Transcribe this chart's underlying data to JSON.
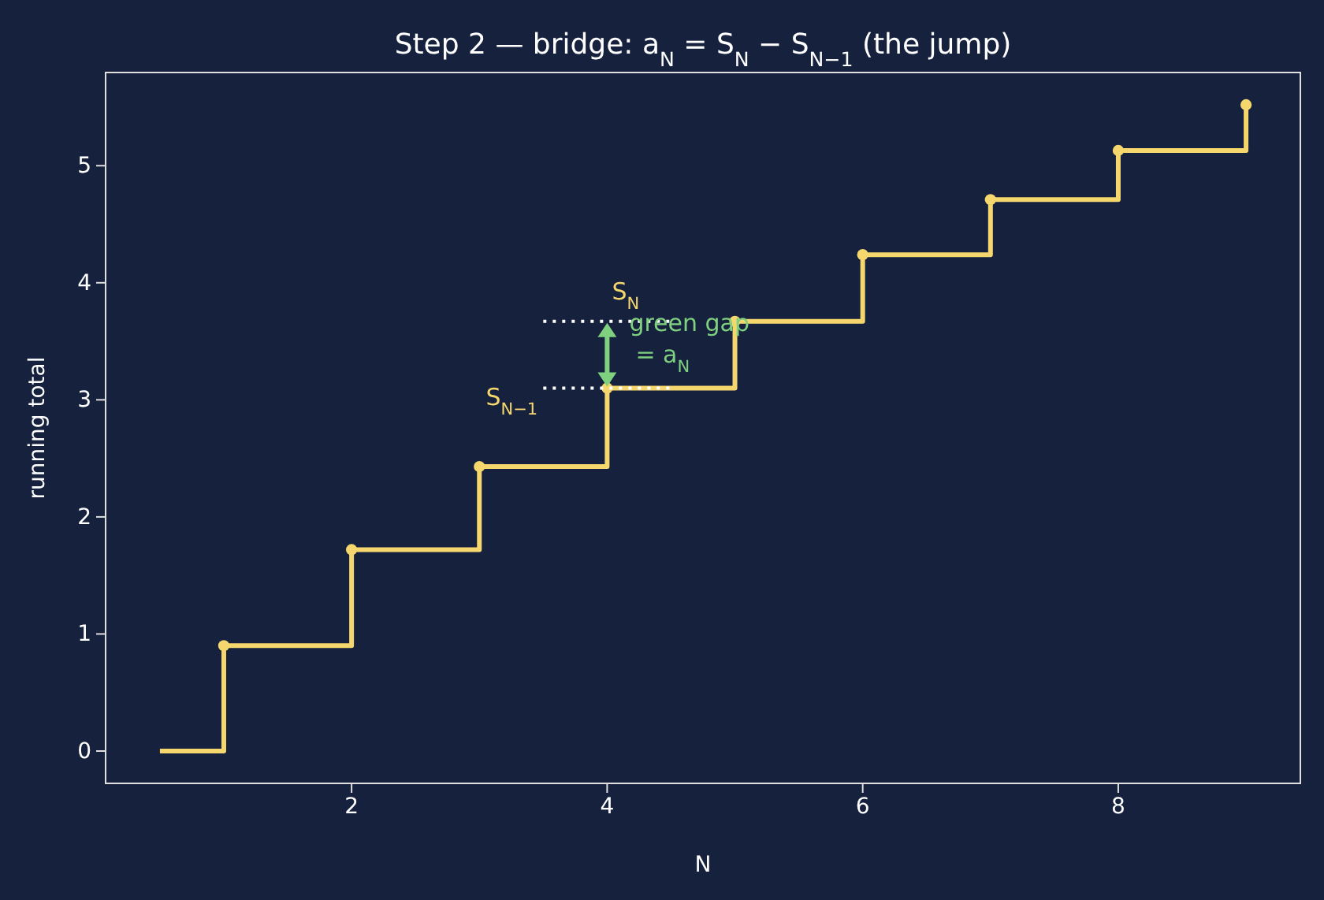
{
  "chart_data": {
    "type": "step",
    "title": "Step 2 — bridge: a$_{N}$ = S$_{N}$ − S$_{N−1}$ (the jump)",
    "xlabel": "N",
    "ylabel": "running total",
    "xlim": [
      0.075,
      9.425
    ],
    "ylim": [
      -0.276,
      5.796
    ],
    "xticks": [
      2,
      4,
      6,
      8
    ],
    "yticks": [
      0,
      1,
      2,
      3,
      4,
      5
    ],
    "grid": false,
    "series": [
      {
        "color": "#f5d76e",
        "x": [
          0.5,
          1,
          2,
          3,
          4,
          5,
          6,
          7,
          8,
          9
        ],
        "values": [
          0,
          0.9,
          1.72,
          2.43,
          3.1,
          3.67,
          4.24,
          4.71,
          5.13,
          5.52
        ]
      },
      {
        "type": "scatter",
        "color": "#f5d76e",
        "marker": "circle",
        "x": [
          1,
          2,
          3,
          4,
          5,
          6,
          7,
          8,
          9
        ],
        "values": [
          0.9,
          1.72,
          2.43,
          3.1,
          3.67,
          4.24,
          4.71,
          5.13,
          5.52
        ]
      },
      {
        "type": "line",
        "color": "#ffffff",
        "line_style": "dotted",
        "x": [
          3.5,
          4.5
        ],
        "values": [
          3.67,
          3.67
        ]
      },
      {
        "type": "line",
        "color": "#ffffff",
        "line_style": "dotted",
        "x": [
          3.5,
          4.5
        ],
        "values": [
          3.1,
          3.1
        ]
      }
    ],
    "annotations": [
      "S$_{N}$",
      "S$_{N−1}$",
      "green gap\n= a$_{N}$"
    ]
  }
}
